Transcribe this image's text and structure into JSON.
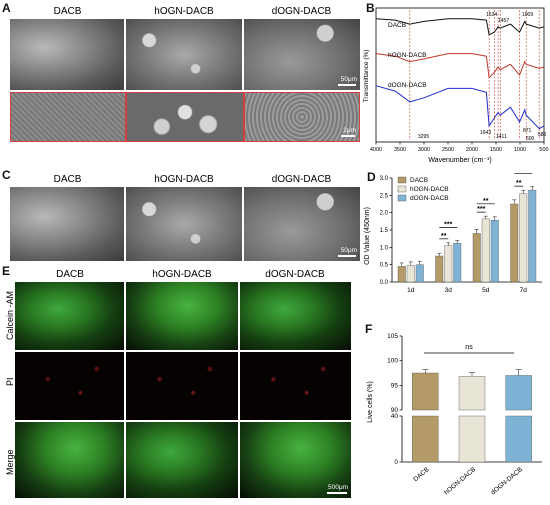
{
  "panels": {
    "A": {
      "label": "A",
      "titles": [
        "DACB",
        "hOGN-DACB",
        "dOGN-DACB"
      ],
      "scale_top": "50μm",
      "scale_bottom": "2μm"
    },
    "B": {
      "label": "B",
      "ylabel": "Transmittance (%)",
      "xlabel": "Wavenumber (cm⁻¹)",
      "curve_labels": [
        "DACB",
        "hOGN-DACB",
        "dOGN-DACB"
      ],
      "peak_labels_top": [
        "1534",
        "1457",
        "1009"
      ],
      "peak_labels_bottom": [
        "1643",
        "3295",
        "1411",
        "871",
        "600",
        "586"
      ],
      "colors": {
        "DACB": "#111111",
        "hOGN-DACB": "#c0392b",
        "dOGN-DACB": "#1f2ecc"
      }
    },
    "C": {
      "label": "C",
      "titles": [
        "DACB",
        "hOGN-DACB",
        "dOGN-DACB"
      ],
      "scale": "50μm"
    },
    "D": {
      "label": "D",
      "ylabel": "OD Value (450nm)",
      "legend": [
        "DACB",
        "hOGN-DACB",
        "dOGN-DACB"
      ],
      "sig": [
        "**",
        "***",
        "***",
        "**",
        "**",
        "***"
      ],
      "colors": [
        "#b39a66",
        "#e8e4d6",
        "#7fb3d5"
      ]
    },
    "E": {
      "label": "E",
      "titles": [
        "DACB",
        "hOGN-DACB",
        "dOGN-DACB"
      ],
      "rows": [
        "Calcein -AM",
        "PI",
        "Merge"
      ],
      "scale": "500μm"
    },
    "F": {
      "label": "F",
      "ylabel": "Live cells (%)",
      "sig": "ns",
      "colors": [
        "#b39a66",
        "#e8e4d6",
        "#7fb3d5"
      ]
    }
  },
  "chart_data": [
    {
      "type": "line",
      "panel": "B",
      "xlabel": "Wavenumber (cm⁻¹)",
      "ylabel": "Transmittance (%)",
      "xlim": [
        4000,
        500
      ],
      "x_ticks": [
        4000,
        3500,
        3000,
        2500,
        2000,
        1500,
        1000,
        500
      ],
      "series": [
        {
          "name": "DACB",
          "x": [
            4000,
            3600,
            3295,
            3000,
            2500,
            2000,
            1700,
            1643,
            1534,
            1457,
            1411,
            1200,
            1009,
            900,
            871,
            600,
            500
          ],
          "y": [
            0.92,
            0.91,
            0.88,
            0.9,
            0.92,
            0.92,
            0.91,
            0.8,
            0.82,
            0.86,
            0.85,
            0.88,
            0.82,
            0.9,
            0.88,
            0.85,
            0.86
          ]
        },
        {
          "name": "hOGN-DACB",
          "x": [
            4000,
            3600,
            3295,
            3000,
            2500,
            2000,
            1700,
            1643,
            1534,
            1457,
            1411,
            1200,
            1009,
            900,
            871,
            600,
            500
          ],
          "y": [
            0.66,
            0.64,
            0.6,
            0.62,
            0.66,
            0.66,
            0.64,
            0.48,
            0.52,
            0.56,
            0.54,
            0.58,
            0.5,
            0.6,
            0.58,
            0.55,
            0.56
          ]
        },
        {
          "name": "dOGN-DACB",
          "x": [
            4000,
            3600,
            3295,
            3000,
            2500,
            2000,
            1700,
            1643,
            1534,
            1457,
            1411,
            1200,
            1009,
            900,
            871,
            600,
            500
          ],
          "y": [
            0.42,
            0.38,
            0.3,
            0.33,
            0.4,
            0.4,
            0.37,
            0.12,
            0.18,
            0.22,
            0.2,
            0.26,
            0.15,
            0.24,
            0.2,
            0.1,
            0.12
          ]
        }
      ]
    },
    {
      "type": "bar",
      "panel": "D",
      "categories": [
        "1d",
        "3d",
        "5d",
        "7d"
      ],
      "ylabel": "OD Value (450nm)",
      "ylim": [
        0,
        3.0
      ],
      "y_ticks": [
        0.0,
        0.5,
        1.0,
        1.5,
        2.0,
        2.5,
        3.0
      ],
      "series": [
        {
          "name": "DACB",
          "values": [
            0.45,
            0.75,
            1.4,
            2.25
          ],
          "errors": [
            0.1,
            0.08,
            0.12,
            0.12
          ]
        },
        {
          "name": "hOGN-DACB",
          "values": [
            0.48,
            1.05,
            1.82,
            2.55
          ],
          "errors": [
            0.1,
            0.08,
            0.08,
            0.1
          ]
        },
        {
          "name": "dOGN-DACB",
          "values": [
            0.5,
            1.12,
            1.78,
            2.65
          ],
          "errors": [
            0.1,
            0.08,
            0.1,
            0.1
          ]
        }
      ]
    },
    {
      "type": "bar",
      "panel": "F",
      "categories": [
        "DACB",
        "hOGN-DACB",
        "dOGN-DACB"
      ],
      "ylabel": "Live cells (%)",
      "y_ticks_upper": [
        90,
        95,
        100,
        105
      ],
      "y_ticks_lower": [
        0,
        40
      ],
      "values": [
        97.5,
        96.8,
        97.0
      ],
      "errors": [
        0.7,
        0.8,
        1.2
      ]
    }
  ]
}
